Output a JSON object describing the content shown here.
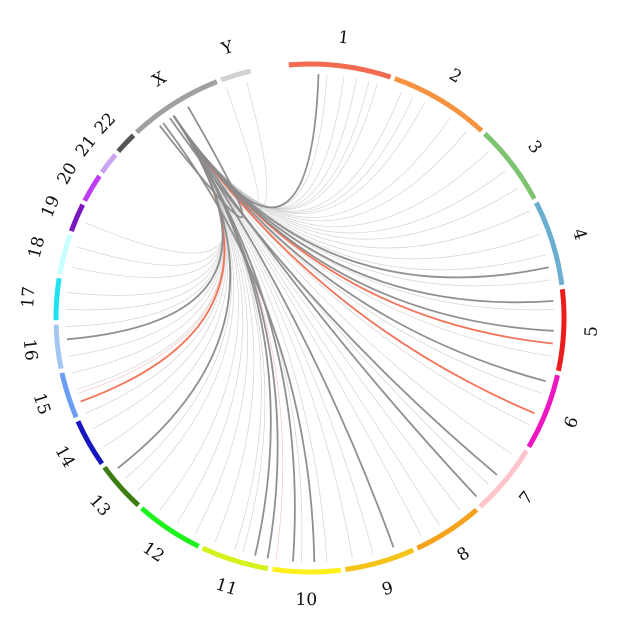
{
  "chromosomes": [
    {
      "name": "1",
      "color": "#f26b50",
      "start": -4.8,
      "end": 18.5
    },
    {
      "name": "2",
      "color": "#f7923e",
      "start": 19.5,
      "end": 42.5
    },
    {
      "name": "3",
      "color": "#7ec470",
      "start": 43.5,
      "end": 62.0
    },
    {
      "name": "4",
      "color": "#6aaed0",
      "start": 63.0,
      "end": 82.5
    },
    {
      "name": "5",
      "color": "#ee1c1c",
      "start": 83.5,
      "end": 102.0
    },
    {
      "name": "6",
      "color": "#ee16c0",
      "start": 103.0,
      "end": 120.5
    },
    {
      "name": "7",
      "color": "#ffc4cb",
      "start": 121.5,
      "end": 138.0
    },
    {
      "name": "8",
      "color": "#f7a21b",
      "start": 139.0,
      "end": 155.0
    },
    {
      "name": "9",
      "color": "#f6c418",
      "start": 156.0,
      "end": 172.0
    },
    {
      "name": "10",
      "color": "#fff01c",
      "start": 173.0,
      "end": 188.5
    },
    {
      "name": "11",
      "color": "#d6f21c",
      "start": 189.5,
      "end": 205.0
    },
    {
      "name": "12",
      "color": "#1ef21c",
      "start": 206.0,
      "end": 221.5
    },
    {
      "name": "13",
      "color": "#3b7d10",
      "start": 222.5,
      "end": 234.0
    },
    {
      "name": "14",
      "color": "#1616c0",
      "start": 235.0,
      "end": 246.0
    },
    {
      "name": "15",
      "color": "#6a9ef5",
      "start": 247.0,
      "end": 257.5
    },
    {
      "name": "16",
      "color": "#a6c6f2",
      "start": 258.5,
      "end": 268.5
    },
    {
      "name": "17",
      "color": "#1ee2f2",
      "start": 269.5,
      "end": 279.0
    },
    {
      "name": "18",
      "color": "#c6ffff",
      "start": 280.0,
      "end": 289.0
    },
    {
      "name": "19",
      "color": "#7d16c0",
      "start": 290.0,
      "end": 296.5
    },
    {
      "name": "20",
      "color": "#c03cf2",
      "start": 297.5,
      "end": 304.0
    },
    {
      "name": "21",
      "color": "#c9a4f2",
      "start": 305.0,
      "end": 310.0
    },
    {
      "name": "22",
      "color": "#555555",
      "start": 311.0,
      "end": 316.0
    },
    {
      "name": "X",
      "color": "#a0a0a0",
      "start": 317.0,
      "end": 338.5
    },
    {
      "name": "Y",
      "color": "#d2d2d2",
      "start": 339.5,
      "end": 346.5
    }
  ],
  "links": [
    {
      "from": 326,
      "to": 96,
      "color": "#f26b50",
      "weight": "strong"
    },
    {
      "from": 326,
      "to": 113,
      "color": "#f26b50",
      "weight": "strong"
    },
    {
      "from": 326,
      "to": 250,
      "color": "#f26b50",
      "weight": "strong"
    },
    {
      "from": 326,
      "to": 2,
      "color": "#8a8a8a",
      "weight": "strong"
    },
    {
      "from": 326,
      "to": 78,
      "color": "#8a8a8a",
      "weight": "strong"
    },
    {
      "from": 326,
      "to": 93,
      "color": "#8a8a8a",
      "weight": "strong"
    },
    {
      "from": 326,
      "to": 137,
      "color": "#8a8a8a",
      "weight": "strong"
    },
    {
      "from": 326,
      "to": 160,
      "color": "#8a8a8a",
      "weight": "strong"
    },
    {
      "from": 326,
      "to": 184,
      "color": "#8a8a8a",
      "weight": "strong"
    },
    {
      "from": 326,
      "to": 193,
      "color": "#8a8a8a",
      "weight": "strong"
    },
    {
      "from": 326,
      "to": 232,
      "color": "#8a8a8a",
      "weight": "strong"
    },
    {
      "from": 326,
      "to": 265,
      "color": "#8a8a8a",
      "weight": "strong"
    },
    {
      "from": 326,
      "to": 190,
      "color": "#8a8a8a",
      "weight": "strong"
    },
    {
      "from": 323,
      "to": 179,
      "color": "#8a8a8a",
      "weight": "strong"
    },
    {
      "from": 322,
      "to": 330,
      "color": "#8a8a8a",
      "weight": "strong"
    },
    {
      "from": 326,
      "to": 105,
      "color": "#8a8a8a",
      "weight": "strong"
    },
    {
      "from": 326,
      "to": 86,
      "color": "#8a8a8a",
      "weight": "strong"
    },
    {
      "from": 325,
      "to": 130,
      "color": "#8a8a8a",
      "weight": "strong"
    },
    {
      "from": 326,
      "to": 8,
      "color": "#c8c8c8",
      "weight": "faint"
    },
    {
      "from": 326,
      "to": 14,
      "color": "#c8c8c8",
      "weight": "faint"
    },
    {
      "from": 326,
      "to": 22,
      "color": "#c8c8c8",
      "weight": "faint"
    },
    {
      "from": 326,
      "to": 28,
      "color": "#c8c8c8",
      "weight": "faint"
    },
    {
      "from": 326,
      "to": 35,
      "color": "#c8c8c8",
      "weight": "faint"
    },
    {
      "from": 326,
      "to": 40,
      "color": "#c8c8c8",
      "weight": "faint"
    },
    {
      "from": 326,
      "to": 47,
      "color": "#c8c8c8",
      "weight": "faint"
    },
    {
      "from": 326,
      "to": 53,
      "color": "#c8c8c8",
      "weight": "faint"
    },
    {
      "from": 326,
      "to": 58,
      "color": "#c8c8c8",
      "weight": "faint"
    },
    {
      "from": 326,
      "to": 64,
      "color": "#c8c8c8",
      "weight": "faint"
    },
    {
      "from": 326,
      "to": 70,
      "color": "#c8c8c8",
      "weight": "faint"
    },
    {
      "from": 326,
      "to": 75,
      "color": "#c8c8c8",
      "weight": "faint"
    },
    {
      "from": 326,
      "to": 81,
      "color": "#c8c8c8",
      "weight": "faint"
    },
    {
      "from": 326,
      "to": 88,
      "color": "#c8c8c8",
      "weight": "faint"
    },
    {
      "from": 326,
      "to": 99,
      "color": "#c8c8c8",
      "weight": "faint"
    },
    {
      "from": 326,
      "to": 108,
      "color": "#c8c8c8",
      "weight": "faint"
    },
    {
      "from": 326,
      "to": 116,
      "color": "#c8c8c8",
      "weight": "faint"
    },
    {
      "from": 326,
      "to": 124,
      "color": "#c8c8c8",
      "weight": "faint"
    },
    {
      "from": 326,
      "to": 133,
      "color": "#c8c8c8",
      "weight": "faint"
    },
    {
      "from": 326,
      "to": 142,
      "color": "#c8c8c8",
      "weight": "faint"
    },
    {
      "from": 326,
      "to": 148,
      "color": "#c8c8c8",
      "weight": "faint"
    },
    {
      "from": 326,
      "to": 153,
      "color": "#c8c8c8",
      "weight": "faint"
    },
    {
      "from": 326,
      "to": 165,
      "color": "#c8c8c8",
      "weight": "faint"
    },
    {
      "from": 326,
      "to": 170,
      "color": "#c8c8c8",
      "weight": "faint"
    },
    {
      "from": 326,
      "to": 176,
      "color": "#c8c8c8",
      "weight": "faint"
    },
    {
      "from": 326,
      "to": 198,
      "color": "#c8c8c8",
      "weight": "faint"
    },
    {
      "from": 326,
      "to": 203,
      "color": "#c8c8c8",
      "weight": "faint"
    },
    {
      "from": 326,
      "to": 208,
      "color": "#c8c8c8",
      "weight": "faint"
    },
    {
      "from": 326,
      "to": 213,
      "color": "#c8c8c8",
      "weight": "faint"
    },
    {
      "from": 326,
      "to": 218,
      "color": "#c8c8c8",
      "weight": "faint"
    },
    {
      "from": 326,
      "to": 225,
      "color": "#c8c8c8",
      "weight": "faint"
    },
    {
      "from": 326,
      "to": 238,
      "color": "#c8c8c8",
      "weight": "faint"
    },
    {
      "from": 326,
      "to": 243,
      "color": "#c8c8c8",
      "weight": "faint"
    },
    {
      "from": 326,
      "to": 247,
      "color": "#c8c8c8",
      "weight": "faint"
    },
    {
      "from": 326,
      "to": 253,
      "color": "#c8c8c8",
      "weight": "faint"
    },
    {
      "from": 326,
      "to": 257,
      "color": "#c8c8c8",
      "weight": "faint"
    },
    {
      "from": 326,
      "to": 261,
      "color": "#c8c8c8",
      "weight": "faint"
    },
    {
      "from": 326,
      "to": 268,
      "color": "#c8c8c8",
      "weight": "faint"
    },
    {
      "from": 326,
      "to": 272,
      "color": "#c8c8c8",
      "weight": "faint"
    },
    {
      "from": 326,
      "to": 276,
      "color": "#c8c8c8",
      "weight": "faint"
    },
    {
      "from": 326,
      "to": 282,
      "color": "#c8c8c8",
      "weight": "faint"
    },
    {
      "from": 326,
      "to": 287,
      "color": "#c8c8c8",
      "weight": "faint"
    },
    {
      "from": 326,
      "to": 293,
      "color": "#c8c8c8",
      "weight": "faint"
    },
    {
      "from": 326,
      "to": 340,
      "color": "#c8c8c8",
      "weight": "faint"
    },
    {
      "from": 326,
      "to": 345,
      "color": "#c8c8c8",
      "weight": "faint"
    },
    {
      "from": 326,
      "to": 4,
      "color": "#c8c8c8",
      "weight": "faint"
    },
    {
      "from": 326,
      "to": 11,
      "color": "#c8c8c8",
      "weight": "faint"
    },
    {
      "from": 326,
      "to": 16,
      "color": "#c8c8c8",
      "weight": "faint"
    },
    {
      "from": 326,
      "to": 25,
      "color": "#c8c8c8",
      "weight": "faint"
    },
    {
      "from": 326,
      "to": 188,
      "color": "#f3b8b0",
      "weight": "faint"
    },
    {
      "from": 326,
      "to": 252,
      "color": "#f3b8b0",
      "weight": "faint"
    },
    {
      "from": 326,
      "to": 182,
      "color": "#c8c8c8",
      "weight": "faint"
    },
    {
      "from": 326,
      "to": 196,
      "color": "#c8c8c8",
      "weight": "faint"
    },
    {
      "from": 326,
      "to": 229,
      "color": "#c8c8c8",
      "weight": "faint"
    }
  ]
}
